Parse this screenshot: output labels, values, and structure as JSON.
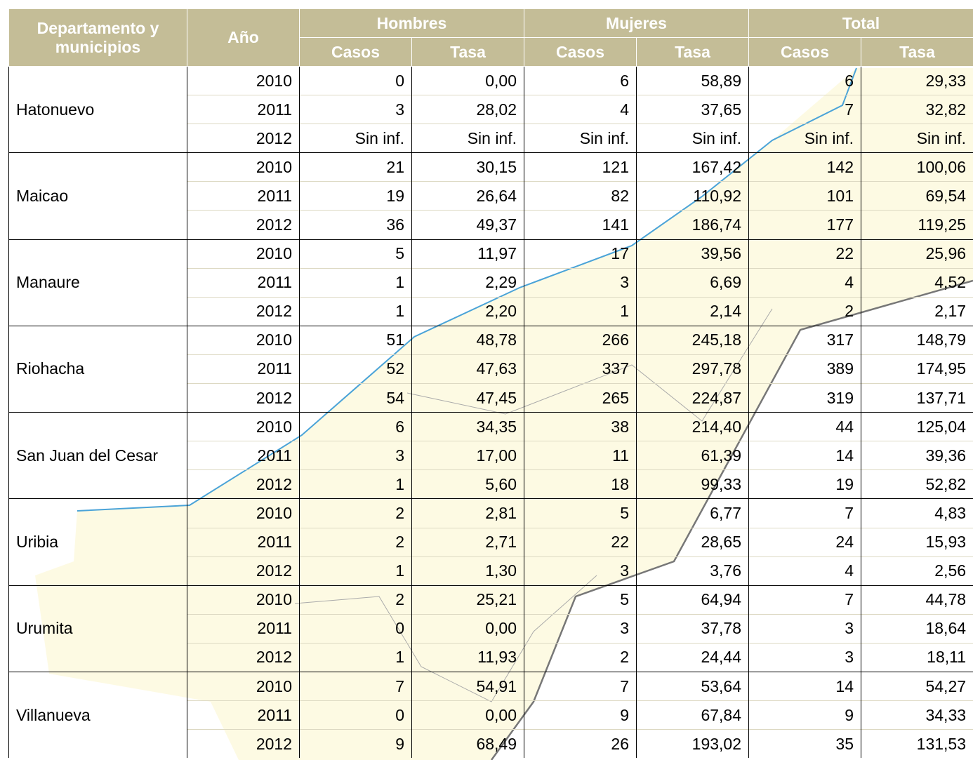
{
  "header": {
    "col1": "Departamento y municipios",
    "col2": "Año",
    "groups": [
      "Hombres",
      "Mujeres",
      "Total"
    ],
    "sub": [
      "Casos",
      "Tasa"
    ]
  },
  "table": {
    "rows": [
      {
        "name": "Hatonuevo",
        "years": [
          [
            "2010",
            "0",
            "0,00",
            "6",
            "58,89",
            "6",
            "29,33"
          ],
          [
            "2011",
            "3",
            "28,02",
            "4",
            "37,65",
            "7",
            "32,82"
          ],
          [
            "2012",
            "Sin inf.",
            "Sin inf.",
            "Sin inf.",
            "Sin inf.",
            "Sin inf.",
            "Sin inf."
          ]
        ]
      },
      {
        "name": "Maicao",
        "years": [
          [
            "2010",
            "21",
            "30,15",
            "121",
            "167,42",
            "142",
            "100,06"
          ],
          [
            "2011",
            "19",
            "26,64",
            "82",
            "110,92",
            "101",
            "69,54"
          ],
          [
            "2012",
            "36",
            "49,37",
            "141",
            "186,74",
            "177",
            "119,25"
          ]
        ]
      },
      {
        "name": "Manaure",
        "years": [
          [
            "2010",
            "5",
            "11,97",
            "17",
            "39,56",
            "22",
            "25,96"
          ],
          [
            "2011",
            "1",
            "2,29",
            "3",
            "6,69",
            "4",
            "4,52"
          ],
          [
            "2012",
            "1",
            "2,20",
            "1",
            "2,14",
            "2",
            "2,17"
          ]
        ]
      },
      {
        "name": "Riohacha",
        "years": [
          [
            "2010",
            "51",
            "48,78",
            "266",
            "245,18",
            "317",
            "148,79"
          ],
          [
            "2011",
            "52",
            "47,63",
            "337",
            "297,78",
            "389",
            "174,95"
          ],
          [
            "2012",
            "54",
            "47,45",
            "265",
            "224,87",
            "319",
            "137,71"
          ]
        ]
      },
      {
        "name": "San Juan del Cesar",
        "years": [
          [
            "2010",
            "6",
            "34,35",
            "38",
            "214,40",
            "44",
            "125,04"
          ],
          [
            "2011",
            "3",
            "17,00",
            "11",
            "61,39",
            "14",
            "39,36"
          ],
          [
            "2012",
            "1",
            "5,60",
            "18",
            "99,33",
            "19",
            "52,82"
          ]
        ]
      },
      {
        "name": "Uribia",
        "years": [
          [
            "2010",
            "2",
            "2,81",
            "5",
            "6,77",
            "7",
            "4,83"
          ],
          [
            "2011",
            "2",
            "2,71",
            "22",
            "28,65",
            "24",
            "15,93"
          ],
          [
            "2012",
            "1",
            "1,30",
            "3",
            "3,76",
            "4",
            "2,56"
          ]
        ]
      },
      {
        "name": "Urumita",
        "years": [
          [
            "2010",
            "2",
            "25,21",
            "5",
            "64,94",
            "7",
            "44,78"
          ],
          [
            "2011",
            "0",
            "0,00",
            "3",
            "37,78",
            "3",
            "18,64"
          ],
          [
            "2012",
            "1",
            "11,93",
            "2",
            "24,44",
            "3",
            "18,11"
          ]
        ]
      },
      {
        "name": "Villanueva",
        "years": [
          [
            "2010",
            "7",
            "54,91",
            "7",
            "53,64",
            "14",
            "54,27"
          ],
          [
            "2011",
            "0",
            "0,00",
            "9",
            "67,84",
            "9",
            "34,33"
          ],
          [
            "2012",
            "9",
            "68,49",
            "26",
            "193,02",
            "35",
            "131,53"
          ]
        ]
      }
    ]
  }
}
